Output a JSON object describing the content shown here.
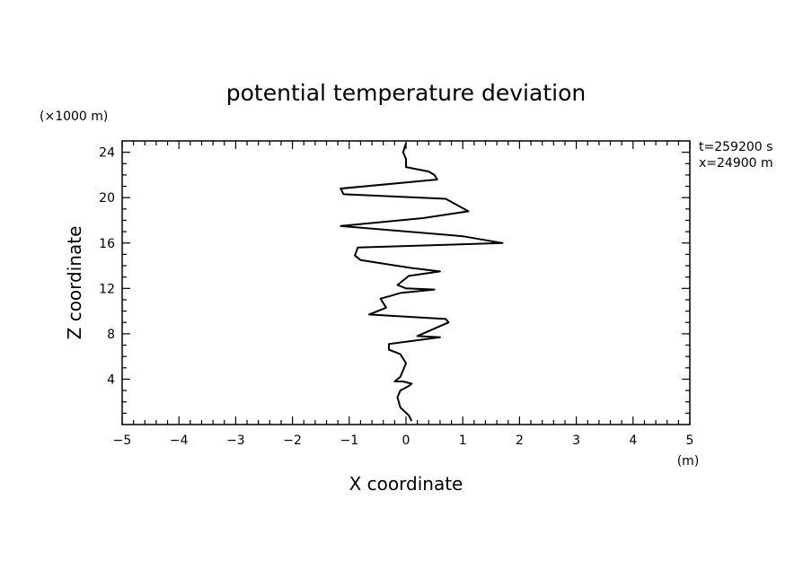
{
  "chart_data": {
    "type": "line",
    "title": "potential temperature deviation",
    "xlabel": "X coordinate",
    "ylabel": "Z coordinate",
    "x_unit": "(m)",
    "y_unit": "(×1000 m)",
    "annotations": [
      "t=259200 s",
      "x=24900 m"
    ],
    "xlim": [
      -5,
      5
    ],
    "ylim": [
      0,
      25
    ],
    "x_ticks": [
      -5,
      -4,
      -3,
      -2,
      -1,
      0,
      1,
      2,
      3,
      4,
      5
    ],
    "x_tick_labels": [
      "−5",
      "−4",
      "−3",
      "−2",
      "−1",
      "0",
      "1",
      "2",
      "3",
      "4",
      "5"
    ],
    "y_ticks": [
      4,
      8,
      12,
      16,
      20,
      24
    ],
    "y_tick_labels": [
      "4",
      "8",
      "12",
      "16",
      "20",
      "24"
    ],
    "grid": false,
    "line_color": "#000000",
    "series": [
      {
        "x": [
          0.1,
          0.05,
          -0.1,
          -0.15,
          -0.1,
          0.05,
          0.1,
          -0.05,
          -0.2,
          -0.1,
          0.0,
          -0.1,
          -0.3,
          -0.3,
          0.6,
          0.2,
          0.75,
          0.7,
          -0.65,
          -0.35,
          -0.45,
          -0.3,
          -0.1,
          0.5,
          0.0,
          -0.15,
          0.05,
          0.6,
          0.1,
          -0.8,
          -0.9,
          -0.85,
          1.7,
          1.0,
          -1.15,
          0.3,
          1.1,
          0.7,
          -1.1,
          -1.15,
          0.55,
          0.5,
          0.4,
          0.0,
          0.0,
          -0.05,
          0.0
        ],
        "y": [
          0.3,
          0.8,
          1.5,
          2.4,
          3.0,
          3.4,
          3.6,
          3.8,
          3.8,
          4.2,
          5.4,
          6.2,
          6.6,
          7.1,
          7.7,
          7.8,
          9.0,
          9.3,
          9.7,
          10.3,
          11.1,
          11.3,
          11.6,
          11.9,
          12.0,
          12.3,
          13.1,
          13.5,
          13.8,
          14.5,
          14.9,
          15.6,
          16.0,
          16.6,
          17.5,
          18.2,
          18.8,
          19.9,
          20.3,
          20.8,
          21.6,
          22.0,
          22.3,
          22.7,
          23.4,
          24.0,
          24.8
        ]
      }
    ]
  }
}
